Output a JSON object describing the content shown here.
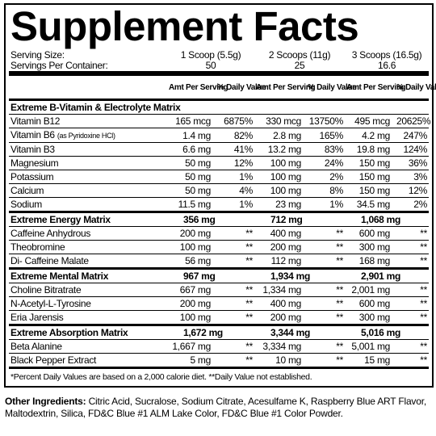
{
  "title": "Supplement Facts",
  "serving": [
    [
      "Serving Size:",
      "1 Scoop (5.5g)",
      "2 Scoops (11g)",
      "3 Scoops (16.5g)"
    ],
    [
      "Servings Per Container:",
      "50",
      "25",
      "16.6"
    ]
  ],
  "header": [
    [
      "Amt Per Serving",
      "% Daily Value"
    ],
    [
      "Amt Per Serving",
      "% Daily Value"
    ],
    [
      "Amt Per Serving",
      "% Daily Value"
    ]
  ],
  "sections": [
    {
      "name": "Extreme B-Vitamin & Electrolyte Matrix",
      "rows": [
        [
          "Vitamin B12",
          "165 mcg",
          "6875%",
          "330 mcg",
          "13750%",
          "495 mcg",
          "20625%"
        ],
        [
          "Vitamin B6",
          "1.4 mg",
          "82%",
          "2.8 mg",
          "165%",
          "4.2 mg",
          "247%"
        ],
        [
          "Vitamin B3",
          "6.6 mg",
          "41%",
          "13.2 mg",
          "83%",
          "19.8 mg",
          "124%"
        ],
        [
          "Magnesium",
          "50 mg",
          "12%",
          "100 mg",
          "24%",
          "150 mg",
          "36%"
        ],
        [
          "Potassium",
          "50 mg",
          "1%",
          "100 mg",
          "2%",
          "150 mg",
          "3%"
        ],
        [
          "Calcium",
          "50 mg",
          "4%",
          "100 mg",
          "8%",
          "150 mg",
          "12%"
        ],
        [
          "Sodium",
          "11.5 mg",
          "1%",
          "23 mg",
          "1%",
          "34.5 mg",
          "2%"
        ]
      ],
      "notes": {
        "1": "(as Pyridoxine HCl)"
      }
    },
    {
      "name": "Extreme Energy Matrix",
      "amounts": [
        "356 mg",
        "712 mg",
        "1,068 mg"
      ],
      "rows": [
        [
          "Caffeine Anhydrous",
          "200 mg",
          "**",
          "400 mg",
          "**",
          "600 mg",
          "**"
        ],
        [
          "Theobromine",
          "100 mg",
          "**",
          "200 mg",
          "**",
          "300 mg",
          "**"
        ],
        [
          "Di- Caffeine Malate",
          "56 mg",
          "**",
          "112 mg",
          "**",
          "168 mg",
          "**"
        ]
      ]
    },
    {
      "name": "Extreme Mental Matrix",
      "amounts": [
        "967 mg",
        "1,934 mg",
        "2,901 mg"
      ],
      "rows": [
        [
          "Choline Bitratrate",
          "667 mg",
          "**",
          "1,334 mg",
          "**",
          "2,001 mg",
          "**"
        ],
        [
          "N-Acetyl-L-Tyrosine",
          "200 mg",
          "**",
          "400 mg",
          "**",
          "600 mg",
          "**"
        ],
        [
          "Eria Jarensis",
          "100 mg",
          "**",
          "200 mg",
          "**",
          "300 mg",
          "**"
        ]
      ]
    },
    {
      "name": "Extreme Absorption Matrix",
      "amounts": [
        "1,672 mg",
        "3,344 mg",
        "5,016 mg"
      ],
      "rows": [
        [
          "Beta Alanine",
          "1,667 mg",
          "**",
          "3,334 mg",
          "**",
          "5,001 mg",
          "**"
        ],
        [
          "Black Pepper Extract",
          "5 mg",
          "**",
          "10 mg",
          "**",
          "15 mg",
          "**"
        ]
      ]
    }
  ],
  "footnote": "*Percent Daily Values are based on a 2,000 calorie diet. **Daily Value not established.",
  "other_ingredients": {
    "label": "Other Ingredients:",
    "text": "Citric Acid, Sucralose, Sodium Citrate, Acesulfame K, Raspberry Blue ART Flavor, Maltodextrin, Silica, FD&C Blue #1 ALM Lake Color, FD&C Blue #1 Color Powder."
  }
}
